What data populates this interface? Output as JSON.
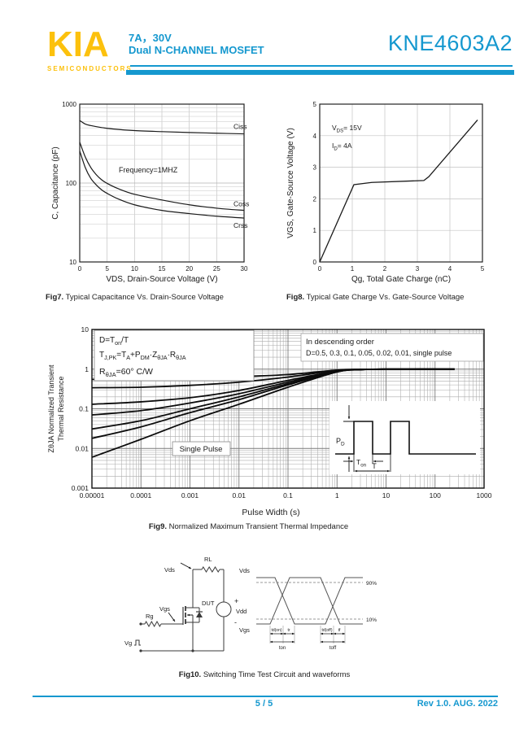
{
  "theme": {
    "accent": "#1598cf",
    "logo_yellow": "#fcc10d",
    "ink": "#1a1a1a"
  },
  "header": {
    "logo": "KIA",
    "logo_sub": "SEMICONDUCTORS",
    "rating": "7A，30V",
    "subtitle": "Dual N-CHANNEL MOSFET",
    "part_number": "KNE4603A2"
  },
  "captions": {
    "fig7": {
      "b": "Fig7.",
      "t": " Typical Capacitance Vs. Drain-Source Voltage"
    },
    "fig8": {
      "b": "Fig8.",
      "t": " Typical Gate Charge Vs. Gate-Source Voltage"
    },
    "fig9": {
      "b": "Fig9.",
      "t": " Normalized Maximum Transient Thermal Impedance"
    },
    "fig10": {
      "b": "Fig10.",
      "t": " Switching Time Test Circuit and waveforms"
    }
  },
  "footer": {
    "page": "5 / 5",
    "rev": "Rev 1.0. AUG. 2022"
  },
  "chart_data": [
    {
      "id": "fig7",
      "type": "line",
      "xlabel": "VDS, Drain-Source Voltage (V)",
      "ylabel": "C, Capacitance (pF)",
      "xlim": [
        0,
        30
      ],
      "xticks": [
        0,
        5,
        10,
        15,
        20,
        25,
        30
      ],
      "ylog": true,
      "ylim": [
        10,
        1000
      ],
      "yticks": [
        10,
        100,
        1000
      ],
      "grid": true,
      "annotation": "Frequency=1MHZ",
      "series": [
        {
          "name": "Ciss",
          "x": [
            0,
            1,
            2,
            4,
            6,
            10,
            15,
            20,
            25,
            30
          ],
          "y": [
            620,
            560,
            535,
            505,
            485,
            462,
            448,
            437,
            428,
            420
          ]
        },
        {
          "name": "Coss",
          "x": [
            0,
            1,
            2,
            3,
            4,
            5,
            7,
            10,
            15,
            20,
            25,
            30
          ],
          "y": [
            330,
            215,
            158,
            128,
            110,
            99,
            85,
            72,
            61,
            53,
            48,
            45
          ]
        },
        {
          "name": "Crss",
          "x": [
            0,
            1,
            2,
            3,
            4,
            5,
            7,
            10,
            15,
            20,
            25,
            30
          ],
          "y": [
            255,
            158,
            115,
            95,
            82,
            74,
            63,
            53,
            45,
            41,
            38,
            36
          ]
        }
      ]
    },
    {
      "id": "fig8",
      "type": "line",
      "xlabel": "Qg, Total Gate Charge (nC)",
      "ylabel": "VGS, Gate-Source Voltage (V)",
      "xlim": [
        0,
        5
      ],
      "xticks": [
        0,
        1,
        2,
        3,
        4,
        5
      ],
      "ylim": [
        0,
        5
      ],
      "yticks": [
        0,
        1,
        2,
        3,
        4,
        5
      ],
      "grid": true,
      "annotations": [
        [
          [
            "V"
          ],
          [
            "DS",
            "sub"
          ],
          [
            "= 15V"
          ]
        ],
        [
          [
            "I"
          ],
          [
            "D",
            "sub"
          ],
          [
            "= 4A"
          ]
        ]
      ],
      "series": [
        {
          "name": "VGS",
          "x": [
            0,
            1.05,
            1.6,
            3.2,
            3.35,
            4.85
          ],
          "y": [
            0,
            2.45,
            2.52,
            2.58,
            2.7,
            4.5
          ]
        }
      ]
    },
    {
      "id": "fig9",
      "type": "line",
      "xlabel": "Pulse Width (s)",
      "ylabel_line1": "ZθJA Normalized Transient",
      "ylabel_line2": "Thermal Resistance",
      "xlog": true,
      "xlim": [
        1e-05,
        1000
      ],
      "xtick_labels": [
        "0.00001",
        "0.0001",
        "0.001",
        "0.01",
        "0.1",
        "1",
        "10",
        "100",
        "1000"
      ],
      "ylog": true,
      "ylim": [
        0.001,
        10
      ],
      "ytick_labels": [
        "10",
        "1",
        "0.1",
        "0.01",
        "0.001"
      ],
      "grid": true,
      "box1_lines": [
        [
          [
            "D=T"
          ],
          [
            "on",
            "sub"
          ],
          [
            "/T"
          ]
        ],
        [
          [
            "T"
          ],
          [
            "J,PK",
            "sub"
          ],
          [
            "=T"
          ],
          [
            "A",
            "sub"
          ],
          [
            "+P"
          ],
          [
            "DM",
            "sub"
          ],
          [
            "·Z"
          ],
          [
            "θJA",
            "sub"
          ],
          [
            "·R"
          ],
          [
            "θJA",
            "sub"
          ]
        ],
        [
          [
            "R"
          ],
          [
            "θJA",
            "sub"
          ],
          [
            "=60° C/W"
          ]
        ]
      ],
      "box2_lines": [
        "In descending order",
        "D=0.5, 0.3, 0.1, 0.05, 0.02, 0.01, single pulse"
      ],
      "single_pulse_label": "Single Pulse",
      "inset_labels": {
        "pd": [
          [
            "P"
          ],
          [
            "D",
            "sub"
          ]
        ],
        "ton": [
          [
            "T"
          ],
          [
            "on",
            "sub"
          ]
        ],
        "period": "T"
      },
      "series": [
        {
          "name": "D=0.5",
          "x": [
            1e-05,
            0.0001,
            0.001,
            0.01,
            0.1,
            1,
            3,
            10,
            250
          ],
          "y": [
            0.55,
            0.56,
            0.58,
            0.64,
            0.73,
            0.95,
            0.99,
            1.0,
            1.0
          ]
        },
        {
          "name": "D=0.3",
          "x": [
            1e-05,
            0.0001,
            0.001,
            0.01,
            0.1,
            1,
            3,
            10,
            250
          ],
          "y": [
            0.34,
            0.35,
            0.39,
            0.47,
            0.63,
            0.93,
            0.98,
            1.0,
            1.0
          ]
        },
        {
          "name": "D=0.1",
          "x": [
            1e-05,
            0.0001,
            0.001,
            0.01,
            0.1,
            1,
            3,
            10,
            250
          ],
          "y": [
            0.13,
            0.15,
            0.19,
            0.29,
            0.52,
            0.9,
            0.98,
            1.0,
            1.0
          ]
        },
        {
          "name": "D=0.05",
          "x": [
            1e-05,
            0.0001,
            0.001,
            0.01,
            0.1,
            1,
            3,
            10,
            250
          ],
          "y": [
            0.07,
            0.09,
            0.14,
            0.24,
            0.47,
            0.89,
            0.97,
            1.0,
            1.0
          ]
        },
        {
          "name": "D=0.02",
          "x": [
            1e-05,
            0.0001,
            0.001,
            0.01,
            0.1,
            1,
            3,
            10,
            250
          ],
          "y": [
            0.031,
            0.05,
            0.1,
            0.2,
            0.43,
            0.87,
            0.97,
            1.0,
            1.0
          ]
        },
        {
          "name": "D=0.01",
          "x": [
            1e-05,
            0.0001,
            0.001,
            0.01,
            0.1,
            1,
            3,
            10,
            250
          ],
          "y": [
            0.018,
            0.035,
            0.08,
            0.17,
            0.4,
            0.86,
            0.97,
            1.0,
            1.0
          ]
        },
        {
          "name": "single pulse",
          "x": [
            1e-05,
            0.0001,
            0.001,
            0.01,
            0.1,
            1,
            3,
            10,
            250
          ],
          "y": [
            0.006,
            0.017,
            0.05,
            0.13,
            0.35,
            0.85,
            0.97,
            1.0,
            1.0
          ]
        }
      ]
    }
  ],
  "circuit": {
    "labels": {
      "rl": "RL",
      "vds": "Vds",
      "dut": "DUT",
      "vdd": "Vdd",
      "plus": "+",
      "minus": "-",
      "vgs": "Vgs",
      "rg": "Rg",
      "vg": "Vg"
    }
  },
  "waveform": {
    "labels": {
      "vds": "Vds",
      "vgs": "Vgs",
      "p90": "90%",
      "p10": "10%",
      "td_on": "td(on)",
      "tr": "tr",
      "td_off": "td(off)",
      "tf": "tf",
      "ton": "ton",
      "toff": "toff"
    }
  }
}
